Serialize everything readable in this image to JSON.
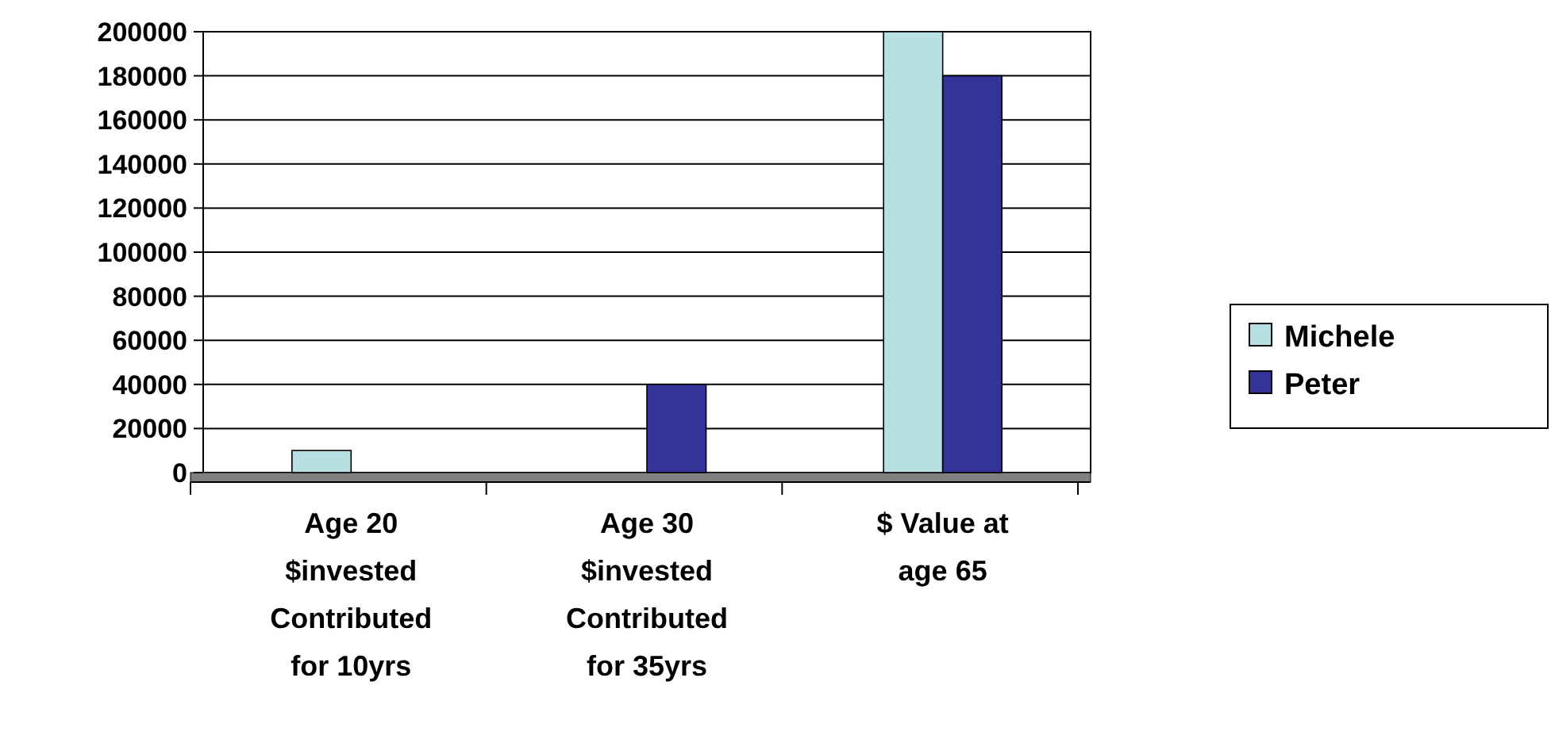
{
  "chart_data": {
    "type": "bar",
    "categories": [
      "Age 20\n$invested\nContributed\nfor 10yrs",
      "Age 30\n$invested\nContributed\nfor 35yrs",
      "$ Value at\nage 65"
    ],
    "series": [
      {
        "name": "Michele",
        "color": "#b8e0e4",
        "values": [
          10000,
          0,
          200000
        ]
      },
      {
        "name": "Peter",
        "color": "#333399",
        "values": [
          0,
          40000,
          180000
        ]
      }
    ],
    "ylim": [
      0,
      200000
    ],
    "yticks": [
      0,
      20000,
      40000,
      60000,
      80000,
      100000,
      120000,
      140000,
      160000,
      180000,
      200000
    ],
    "grid": "y",
    "legend": "right"
  }
}
